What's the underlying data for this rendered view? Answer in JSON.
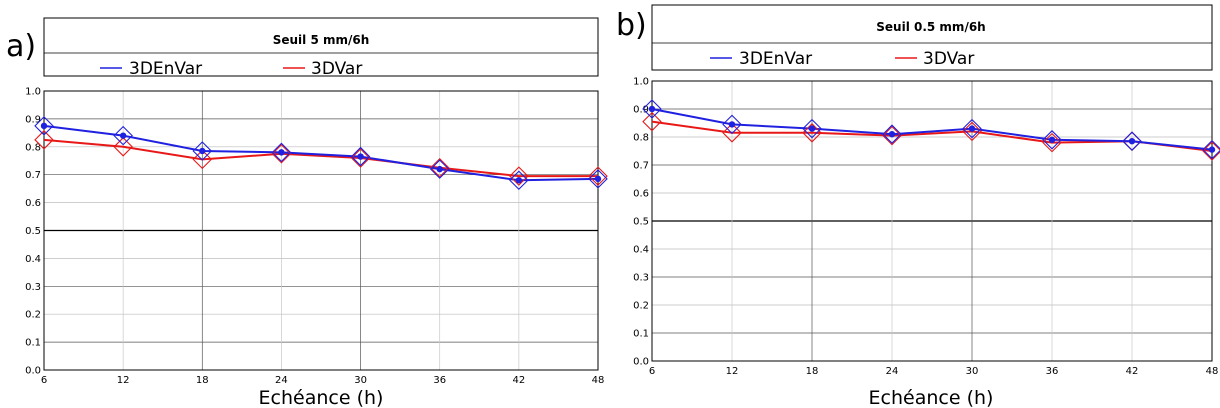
{
  "colors": {
    "3DEnVar": "#2020e0",
    "3DVar": "#e81818"
  },
  "chart_data": [
    {
      "type": "line",
      "panel_label": "a)",
      "title": "Seuil 5   mm/6h",
      "xlabel": "Echéance (h)",
      "ylabel": "",
      "x": [
        6,
        12,
        18,
        24,
        30,
        36,
        42,
        48
      ],
      "xlim": [
        6,
        48
      ],
      "ylim": [
        0.0,
        1.0
      ],
      "yticks": [
        "0.0",
        "0.1",
        "0.2",
        "0.3",
        "0.4",
        "0.5",
        "0.6",
        "0.7",
        "0.8",
        "0.9",
        "1.0"
      ],
      "xticks": [
        "6",
        "12",
        "18",
        "24",
        "30",
        "36",
        "42",
        "48"
      ],
      "legend_position": "top",
      "grid": true,
      "series": [
        {
          "name": "3DEnVar",
          "values": [
            0.875,
            0.84,
            0.785,
            0.78,
            0.765,
            0.72,
            0.68,
            0.685
          ]
        },
        {
          "name": "3DVar",
          "values": [
            0.825,
            0.8,
            0.755,
            0.775,
            0.76,
            0.725,
            0.695,
            0.695
          ]
        }
      ]
    },
    {
      "type": "line",
      "panel_label": "b)",
      "title": "Seuil 0.5    mm/6h",
      "xlabel": "Echéance (h)",
      "ylabel": "",
      "x": [
        6,
        12,
        18,
        24,
        30,
        36,
        42,
        48
      ],
      "xlim": [
        6,
        48
      ],
      "ylim": [
        0.0,
        1.0
      ],
      "yticks": [
        "0.0",
        "0.1",
        "0.2",
        "0.3",
        "0.4",
        "0.5",
        "0.6",
        "0.7",
        "0.8",
        "0.9",
        "1.0"
      ],
      "xticks": [
        "6",
        "12",
        "18",
        "24",
        "30",
        "36",
        "42",
        "48"
      ],
      "legend_position": "top",
      "grid": true,
      "series": [
        {
          "name": "3DEnVar",
          "values": [
            0.9,
            0.845,
            0.83,
            0.81,
            0.83,
            0.79,
            0.785,
            0.755
          ]
        },
        {
          "name": "3DVar",
          "values": [
            0.855,
            0.815,
            0.815,
            0.805,
            0.82,
            0.78,
            0.785,
            0.75
          ]
        }
      ]
    }
  ]
}
